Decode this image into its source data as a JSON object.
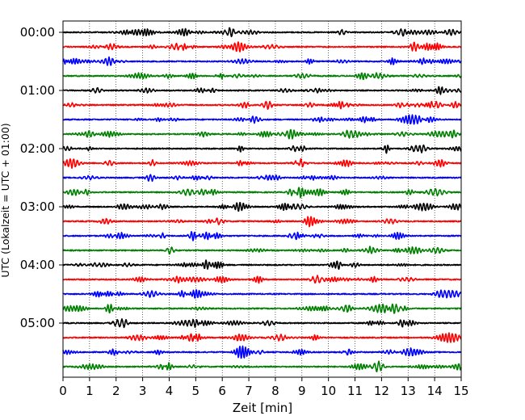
{
  "chart_data": {
    "type": "line",
    "title": "",
    "xlabel": "Zeit  [min]",
    "ylabel": "UTC (Lokalzeit = UTC + 01:00)",
    "xlim": [
      0,
      15
    ],
    "xticks": [
      "0",
      "1",
      "2",
      "3",
      "4",
      "5",
      "6",
      "7",
      "8",
      "9",
      "10",
      "11",
      "12",
      "13",
      "14",
      "15"
    ],
    "ytick_labels": [
      "00:00",
      "01:00",
      "02:00",
      "03:00",
      "04:00",
      "05:00"
    ],
    "grid_x": true,
    "trace_interval_min": 15,
    "trace_start": "00:00",
    "trace_count": 24,
    "trace_colors": [
      "#000000",
      "#ff0000",
      "#0000ff",
      "#008000"
    ]
  }
}
